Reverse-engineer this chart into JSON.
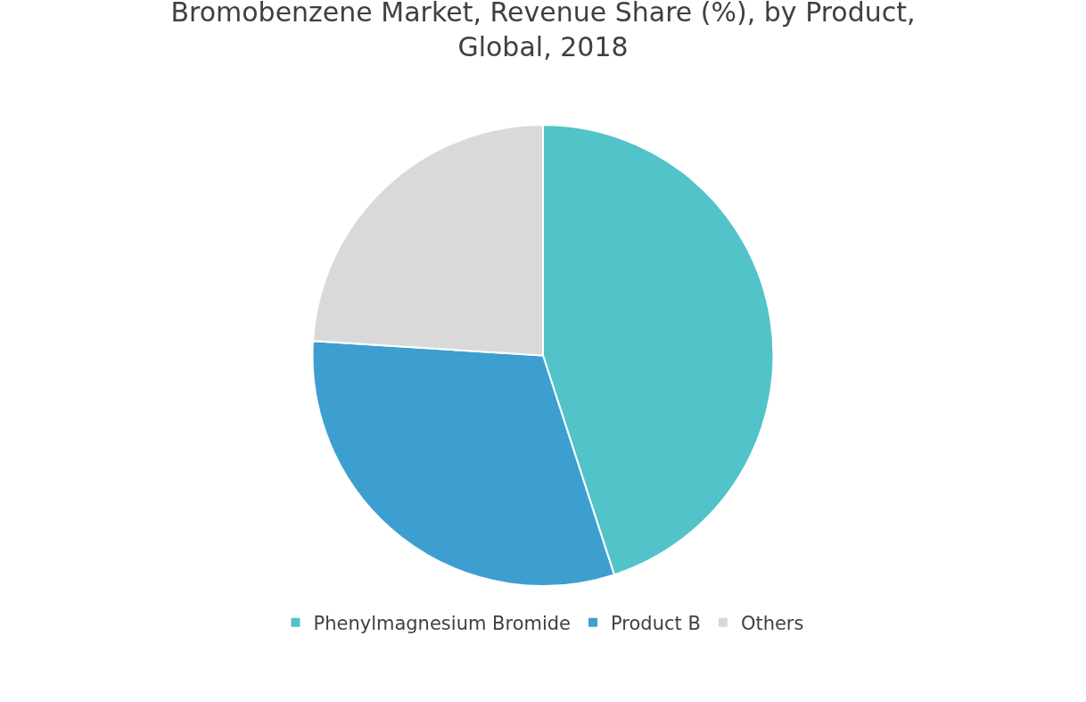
{
  "chart_data": {
    "type": "pie",
    "title": "Bromobenzene Market, Revenue Share (%), by Product, Global, 2018",
    "categories": [
      "Phenylmagnesium Bromide",
      "Product B",
      "Others"
    ],
    "values": [
      45,
      31,
      24
    ],
    "colors": [
      "#51c3c9",
      "#3d9fd0",
      "#d9d9d9"
    ],
    "legend": "bottom"
  }
}
